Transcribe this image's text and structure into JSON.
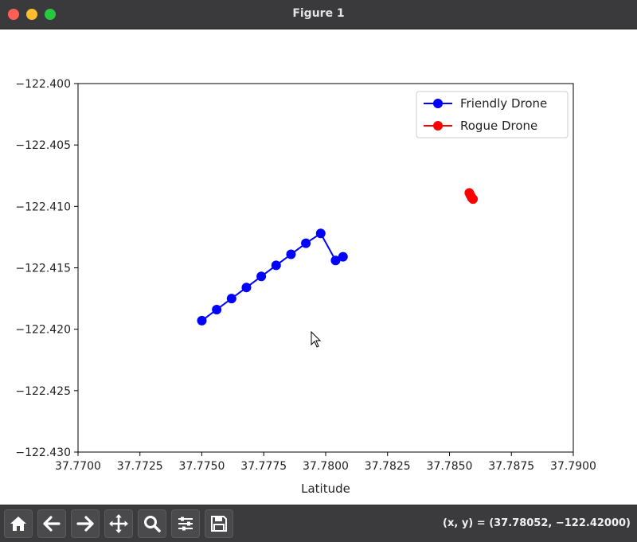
{
  "window": {
    "title": "Figure 1"
  },
  "toolbar": {
    "buttons": [
      {
        "icon": "home-icon"
      },
      {
        "icon": "back-arrow-icon"
      },
      {
        "icon": "forward-arrow-icon"
      },
      {
        "icon": "pan-icon"
      },
      {
        "icon": "zoom-icon"
      },
      {
        "icon": "configure-subplots-icon"
      },
      {
        "icon": "save-icon"
      }
    ],
    "coords": "(x, y) = (37.78052, −122.42000)"
  },
  "chart_data": {
    "type": "line",
    "xlabel": "Latitude",
    "ylabel": "",
    "xlim": [
      37.77,
      37.79
    ],
    "ylim": [
      -122.43,
      -122.4
    ],
    "x_ticks": [
      37.77,
      37.7725,
      37.775,
      37.7775,
      37.78,
      37.7825,
      37.785,
      37.7875,
      37.79
    ],
    "x_tick_labels": [
      "37.7700",
      "37.7725",
      "37.7750",
      "37.7775",
      "37.7800",
      "37.7825",
      "37.7850",
      "37.7875",
      "37.7900"
    ],
    "y_ticks": [
      -122.4,
      -122.405,
      -122.41,
      -122.415,
      -122.42,
      -122.425,
      -122.43
    ],
    "y_tick_labels": [
      "−122.400",
      "−122.405",
      "−122.410",
      "−122.415",
      "−122.420",
      "−122.425",
      "−122.430"
    ],
    "legend_position": "top-right",
    "grid": false,
    "series": [
      {
        "name": "Friendly Drone",
        "color": "#0000ff",
        "x": [
          37.775,
          37.7756,
          37.7762,
          37.7768,
          37.7774,
          37.778,
          37.7786,
          37.7792,
          37.7798,
          37.7804,
          37.7807
        ],
        "y": [
          -122.4193,
          -122.4184,
          -122.4175,
          -122.4166,
          -122.4157,
          -122.4148,
          -122.4139,
          -122.413,
          -122.4122,
          -122.4144,
          -122.4141
        ]
      },
      {
        "name": "Rogue Drone",
        "color": "#ff0000",
        "x": [
          37.7858,
          37.78585,
          37.7859,
          37.78595
        ],
        "y": [
          -122.4089,
          -122.4091,
          -122.4093,
          -122.4094
        ]
      }
    ]
  }
}
